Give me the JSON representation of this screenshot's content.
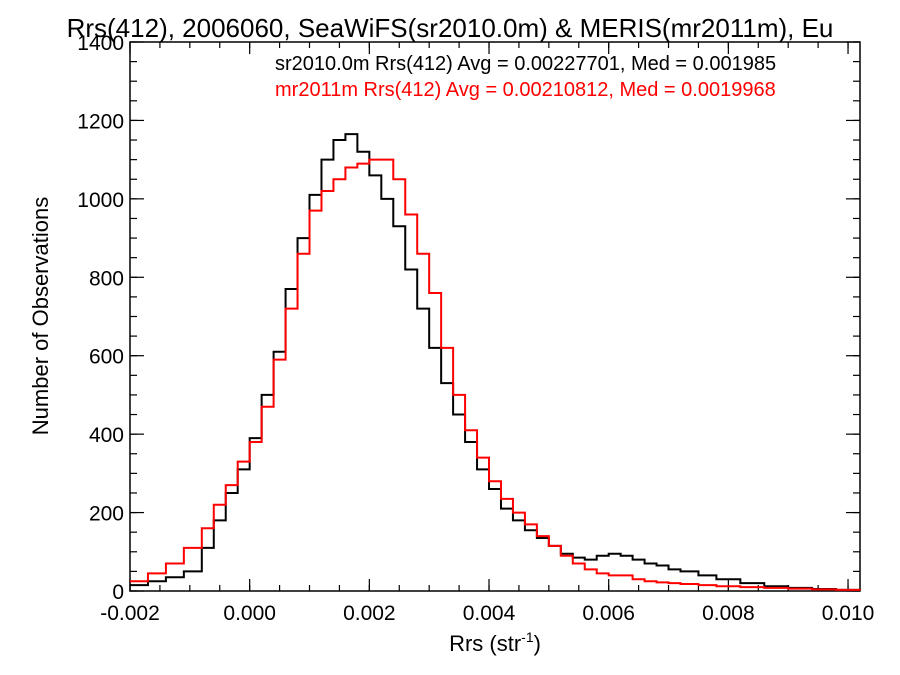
{
  "chart_data": {
    "type": "histogram-step",
    "title": "Rrs(412), 2006060, SeaWiFS(sr2010.0m) & MERIS(mr2011m), Eu",
    "xlabel": "Rrs (str",
    "xlabel_sup": "-1",
    "xlabel_end": ")",
    "ylabel": "Number of Observations",
    "xlim": [
      -0.002,
      0.0102
    ],
    "ylim": [
      0,
      1400
    ],
    "xticks": [
      -0.002,
      0.0,
      0.002,
      0.004,
      0.006,
      0.008,
      0.01
    ],
    "xtick_labels": [
      "-0.002",
      "0.000",
      "0.002",
      "0.004",
      "0.006",
      "0.008",
      "0.010"
    ],
    "yticks": [
      0,
      200,
      400,
      600,
      800,
      1000,
      1200,
      1400
    ],
    "ytick_labels": [
      "0",
      "200",
      "400",
      "600",
      "800",
      "1000",
      "1200",
      "1400"
    ],
    "series": [
      {
        "name": "sr2010.0m Rrs(412) Avg = 0.00227701, Med = 0.001985",
        "color": "#000000",
        "x": [
          -0.002,
          -0.0017,
          -0.0014,
          -0.0011,
          -0.0008,
          -0.0006,
          -0.0004,
          -0.0002,
          0.0,
          0.0002,
          0.0004,
          0.0006,
          0.0008,
          0.001,
          0.0012,
          0.0014,
          0.0016,
          0.0018,
          0.002,
          0.0022,
          0.0024,
          0.0026,
          0.0028,
          0.003,
          0.0032,
          0.0034,
          0.0036,
          0.0038,
          0.004,
          0.0042,
          0.0044,
          0.0046,
          0.0048,
          0.005,
          0.0052,
          0.0054,
          0.0056,
          0.0058,
          0.006,
          0.0062,
          0.0064,
          0.0066,
          0.0068,
          0.007,
          0.0072,
          0.0075,
          0.0078,
          0.0082,
          0.0086,
          0.009,
          0.0094,
          0.0098,
          0.0102
        ],
        "y": [
          15,
          25,
          35,
          50,
          110,
          180,
          250,
          310,
          390,
          500,
          610,
          770,
          900,
          1010,
          1100,
          1150,
          1165,
          1120,
          1060,
          1000,
          930,
          820,
          720,
          620,
          530,
          450,
          380,
          310,
          260,
          210,
          180,
          155,
          135,
          115,
          95,
          85,
          80,
          90,
          95,
          90,
          80,
          70,
          65,
          55,
          50,
          40,
          30,
          20,
          12,
          8,
          5,
          3,
          2
        ]
      },
      {
        "name": "mr2011m Rrs(412) Avg = 0.00210812, Med = 0.0019968",
        "color": "#ff0000",
        "x": [
          -0.002,
          -0.0017,
          -0.0014,
          -0.0011,
          -0.0008,
          -0.0006,
          -0.0004,
          -0.0002,
          0.0,
          0.0002,
          0.0004,
          0.0006,
          0.0008,
          0.001,
          0.0012,
          0.0014,
          0.0016,
          0.0018,
          0.002,
          0.0022,
          0.0024,
          0.0026,
          0.0028,
          0.003,
          0.0032,
          0.0034,
          0.0036,
          0.0038,
          0.004,
          0.0042,
          0.0044,
          0.0046,
          0.0048,
          0.005,
          0.0052,
          0.0054,
          0.0056,
          0.0058,
          0.006,
          0.0062,
          0.0064,
          0.0066,
          0.0068,
          0.007,
          0.0072,
          0.0075,
          0.0078,
          0.0082,
          0.0086,
          0.009,
          0.0094,
          0.0098,
          0.0102
        ],
        "y": [
          25,
          45,
          70,
          110,
          160,
          220,
          270,
          330,
          380,
          470,
          590,
          720,
          860,
          970,
          1020,
          1050,
          1080,
          1090,
          1100,
          1100,
          1050,
          960,
          860,
          760,
          620,
          500,
          410,
          340,
          280,
          235,
          200,
          170,
          140,
          115,
          90,
          70,
          55,
          45,
          40,
          40,
          30,
          25,
          22,
          20,
          18,
          15,
          12,
          10,
          8,
          6,
          4,
          3,
          2
        ]
      }
    ]
  }
}
